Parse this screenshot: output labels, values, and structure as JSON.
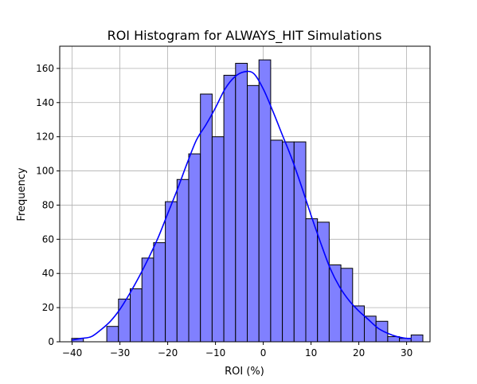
{
  "chart_data": {
    "type": "bar",
    "subtype": "histogram",
    "title": "ROI Histogram for ALWAYS_HIT Simulations",
    "xlabel": "ROI (%)",
    "ylabel": "Frequency",
    "xlim": [
      -42.6,
      34.9
    ],
    "ylim": [
      0,
      173
    ],
    "xticks": [
      -40,
      -30,
      -20,
      -10,
      0,
      10,
      20,
      30
    ],
    "yticks": [
      0,
      20,
      40,
      60,
      80,
      100,
      120,
      140,
      160
    ],
    "grid": true,
    "colors": {
      "bar_fill": "#8080ff",
      "bar_edge": "#000000",
      "kde_line": "#0000ff"
    },
    "bins": {
      "start": -40.1,
      "width": 2.45,
      "counts": [
        2,
        0,
        0,
        9,
        25,
        31,
        49,
        58,
        82,
        95,
        110,
        145,
        120,
        156,
        163,
        150,
        165,
        118,
        117,
        117,
        72,
        70,
        45,
        43,
        21,
        15,
        12,
        3,
        2,
        4
      ]
    },
    "kde": {
      "x": [
        -40,
        -38,
        -36,
        -34,
        -32,
        -30,
        -28,
        -26,
        -24,
        -22,
        -20,
        -18,
        -16,
        -14,
        -12,
        -10,
        -8,
        -6,
        -4,
        -2,
        0,
        2,
        4,
        6,
        8,
        10,
        12,
        14,
        16,
        18,
        20,
        22,
        24,
        26,
        28,
        30,
        31
      ],
      "y": [
        1,
        2,
        3,
        7,
        12,
        19,
        28,
        38,
        49,
        61,
        75,
        89,
        104,
        118,
        127,
        137,
        148,
        155,
        158,
        157,
        148,
        135,
        121,
        107,
        91,
        74,
        58,
        43,
        32,
        24,
        18,
        13,
        8,
        5,
        3,
        2,
        2
      ]
    }
  }
}
